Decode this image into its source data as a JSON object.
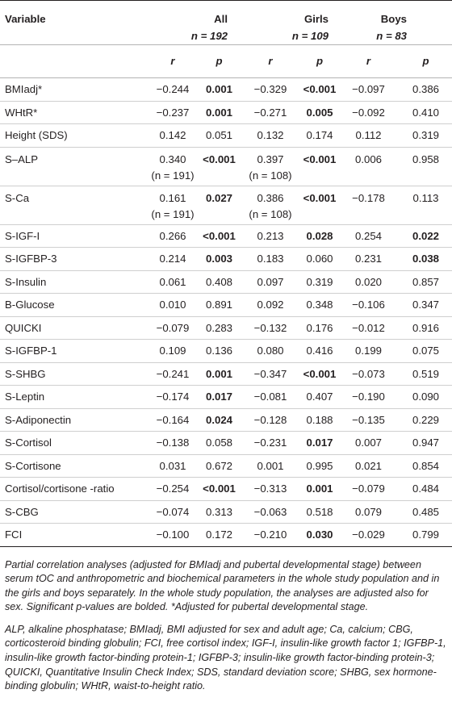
{
  "headers": {
    "variable": "Variable",
    "groups": [
      {
        "name": "All",
        "n": "n = 192"
      },
      {
        "name": "Girls",
        "n": "n = 109"
      },
      {
        "name": "Boys",
        "n": "n = 83"
      }
    ],
    "r": "r",
    "p": "p"
  },
  "rows": [
    {
      "variable": "BMIadj*",
      "all_r": "−0.244",
      "all_p": "0.001",
      "girls_r": "−0.329",
      "girls_p": "<0.001",
      "boys_r": "−0.097",
      "boys_p": "0.386"
    },
    {
      "variable": "WHtR*",
      "all_r": "−0.237",
      "all_p": "0.001",
      "girls_r": "−0.271",
      "girls_p": "0.005",
      "boys_r": "−0.092",
      "boys_p": "0.410"
    },
    {
      "variable": "Height (SDS)",
      "all_r": "0.142",
      "all_p": "0.051",
      "girls_r": "0.132",
      "girls_p": "0.174",
      "boys_r": "0.112",
      "boys_p": "0.319"
    },
    {
      "variable": "S–ALP",
      "all_r": "0.340",
      "all_n": "(n = 191)",
      "all_p": "<0.001",
      "girls_r": "0.397",
      "girls_n": "(n = 108)",
      "girls_p": "<0.001",
      "boys_r": "0.006",
      "boys_p": "0.958"
    },
    {
      "variable": "S-Ca",
      "all_r": "0.161",
      "all_n": "(n = 191)",
      "all_p": "0.027",
      "girls_r": "0.386",
      "girls_n": "(n = 108)",
      "girls_p": "<0.001",
      "boys_r": "−0.178",
      "boys_p": "0.113"
    },
    {
      "variable": "S-IGF-I",
      "all_r": "0.266",
      "all_p": "<0.001",
      "girls_r": "0.213",
      "girls_p": "0.028",
      "boys_r": "0.254",
      "boys_p": "0.022"
    },
    {
      "variable": "S-IGFBP-3",
      "all_r": "0.214",
      "all_p": "0.003",
      "girls_r": "0.183",
      "girls_p": "0.060",
      "boys_r": "0.231",
      "boys_p": "0.038"
    },
    {
      "variable": "S-Insulin",
      "all_r": "0.061",
      "all_p": "0.408",
      "girls_r": "0.097",
      "girls_p": "0.319",
      "boys_r": "0.020",
      "boys_p": "0.857"
    },
    {
      "variable": "B-Glucose",
      "all_r": "0.010",
      "all_p": "0.891",
      "girls_r": "0.092",
      "girls_p": "0.348",
      "boys_r": "−0.106",
      "boys_p": "0.347"
    },
    {
      "variable": "QUICKI",
      "all_r": "−0.079",
      "all_p": "0.283",
      "girls_r": "−0.132",
      "girls_p": "0.176",
      "boys_r": "−0.012",
      "boys_p": "0.916"
    },
    {
      "variable": "S-IGFBP-1",
      "all_r": "0.109",
      "all_p": "0.136",
      "girls_r": "0.080",
      "girls_p": "0.416",
      "boys_r": "0.199",
      "boys_p": "0.075"
    },
    {
      "variable": "S-SHBG",
      "all_r": "−0.241",
      "all_p": "0.001",
      "girls_r": "−0.347",
      "girls_p": "<0.001",
      "boys_r": "−0.073",
      "boys_p": "0.519"
    },
    {
      "variable": "S-Leptin",
      "all_r": "−0.174",
      "all_p": "0.017",
      "girls_r": "−0.081",
      "girls_p": "0.407",
      "boys_r": "−0.190",
      "boys_p": "0.090"
    },
    {
      "variable": "S-Adiponectin",
      "all_r": "−0.164",
      "all_p": "0.024",
      "girls_r": "−0.128",
      "girls_p": "0.188",
      "boys_r": "−0.135",
      "boys_p": "0.229"
    },
    {
      "variable": "S-Cortisol",
      "all_r": "−0.138",
      "all_p": "0.058",
      "girls_r": "−0.231",
      "girls_p": "0.017",
      "boys_r": "0.007",
      "boys_p": "0.947"
    },
    {
      "variable": "S-Cortisone",
      "all_r": "0.031",
      "all_p": "0.672",
      "girls_r": "0.001",
      "girls_p": "0.995",
      "boys_r": "0.021",
      "boys_p": "0.854"
    },
    {
      "variable": "Cortisol/cortisone -ratio",
      "all_r": "−0.254",
      "all_p": "<0.001",
      "girls_r": "−0.313",
      "girls_p": "0.001",
      "boys_r": "−0.079",
      "boys_p": "0.484"
    },
    {
      "variable": "S-CBG",
      "all_r": "−0.074",
      "all_p": "0.313",
      "girls_r": "−0.063",
      "girls_p": "0.518",
      "boys_r": "0.079",
      "boys_p": "0.485"
    },
    {
      "variable": "FCI",
      "all_r": "−0.100",
      "all_p": "0.172",
      "girls_r": "−0.210",
      "girls_p": "0.030",
      "boys_r": "−0.029",
      "boys_p": "0.799"
    }
  ],
  "bold_p": {
    "all_p": [
      0,
      1,
      3,
      4,
      5,
      6,
      11,
      12,
      13,
      16
    ],
    "girls_p": [
      0,
      1,
      3,
      4,
      5,
      11,
      14,
      16,
      18
    ],
    "boys_p": [
      5,
      6
    ]
  },
  "notes": {
    "caption": "Partial correlation analyses (adjusted for BMIadj and pubertal developmental stage) between serum tOC and anthropometric and biochemical parameters in the whole study population and in the girls and boys separately. In the whole study population, the analyses are adjusted also for sex. Significant p-values are bolded. *Adjusted for pubertal developmental stage.",
    "abbreviations": "ALP, alkaline phosphatase; BMIadj, BMI adjusted for sex and adult age; Ca, calcium; CBG, corticosteroid binding globulin; FCI, free cortisol index; IGF-I, insulin-like growth factor 1; IGFBP-1, insulin-like growth factor-binding protein-1; IGFBP-3; insulin-like growth factor-binding protein-3; QUICKI, Quantitative Insulin Check Index; SDS, standard deviation score; SHBG, sex hormone-binding globulin; WHtR, waist-to-height ratio."
  }
}
